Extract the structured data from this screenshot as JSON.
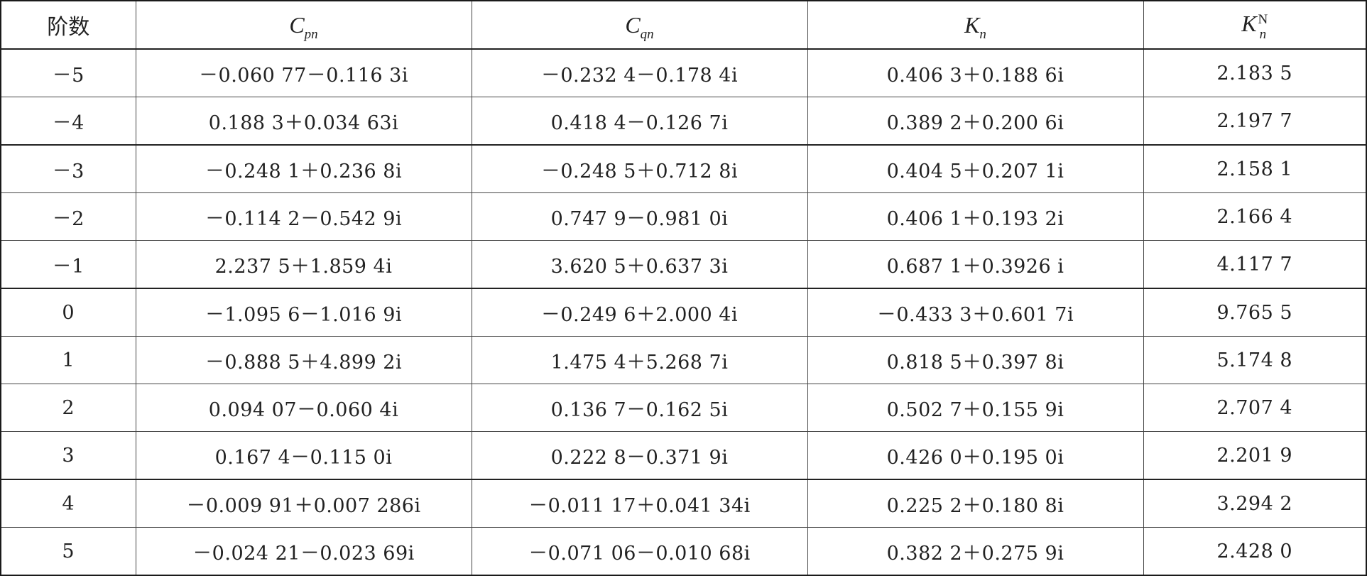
{
  "table": {
    "headers": {
      "order": "阶数",
      "cp": {
        "sym": "C",
        "sub": "pn"
      },
      "cq": {
        "sym": "C",
        "sub": "qn"
      },
      "k": {
        "sym": "K",
        "sub": "n"
      },
      "kn": {
        "sym": "K",
        "sup": "N",
        "sub": "n"
      }
    },
    "rows": [
      {
        "order": "－5",
        "cp": "－0.060 77－0.116 3i",
        "cq": "－0.232 4－0.178 4i",
        "k": "0.406 3＋0.188 6i",
        "kn": "2.183 5"
      },
      {
        "order": "－4",
        "cp": "0.188 3＋0.034 63i",
        "cq": "0.418 4－0.126 7i",
        "k": "0.389 2＋0.200 6i",
        "kn": "2.197 7"
      },
      {
        "order": "－3",
        "cp": "－0.248 1＋0.236 8i",
        "cq": "－0.248 5＋0.712 8i",
        "k": "0.404 5＋0.207 1i",
        "kn": "2.158 1"
      },
      {
        "order": "－2",
        "cp": "－0.114 2－0.542 9i",
        "cq": "0.747 9－0.981 0i",
        "k": "0.406 1＋0.193 2i",
        "kn": "2.166 4"
      },
      {
        "order": "－1",
        "cp": "2.237 5＋1.859 4i",
        "cq": "3.620 5＋0.637 3i",
        "k": "0.687 1＋0.3926 i",
        "kn": "4.117 7"
      },
      {
        "order": "0",
        "cp": "－1.095 6－1.016 9i",
        "cq": "－0.249 6＋2.000 4i",
        "k": "－0.433 3＋0.601 7i",
        "kn": "9.765 5"
      },
      {
        "order": "1",
        "cp": "－0.888 5＋4.899 2i",
        "cq": "1.475 4＋5.268 7i",
        "k": "0.818 5＋0.397 8i",
        "kn": "5.174 8"
      },
      {
        "order": "2",
        "cp": "0.094 07－0.060 4i",
        "cq": "0.136 7－0.162 5i",
        "k": "0.502 7＋0.155 9i",
        "kn": "2.707 4"
      },
      {
        "order": "3",
        "cp": "0.167 4－0.115 0i",
        "cq": "0.222 8－0.371 9i",
        "k": "0.426 0＋0.195 0i",
        "kn": "2.201 9"
      },
      {
        "order": "4",
        "cp": "－0.009 91＋0.007 286i",
        "cq": "－0.011 17＋0.041 34i",
        "k": "0.225 2＋0.180 8i",
        "kn": "3.294 2"
      },
      {
        "order": "5",
        "cp": "－0.024 21－0.023 69i",
        "cq": "－0.071 06－0.010 68i",
        "k": "0.382 2＋0.275 9i",
        "kn": "2.428 0"
      }
    ]
  }
}
